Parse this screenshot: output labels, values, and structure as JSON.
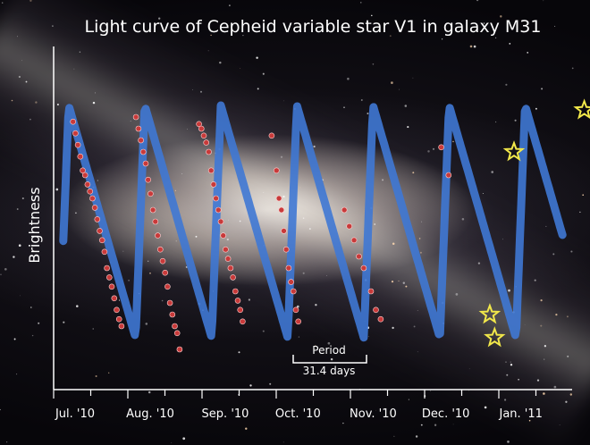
{
  "chart_data": {
    "type": "line",
    "title": "Light curve of Cepheid variable star V1 in galaxy M31",
    "ylabel": "Brightness",
    "xlabel": "",
    "x_tick_labels": [
      "Jul. '10",
      "Aug. '10",
      "Sep. '10",
      "Oct. '10",
      "Nov. '10",
      "Dec. '10",
      "Jan. '11"
    ],
    "x_range_days": [
      0,
      214
    ],
    "period_days": 31.4,
    "annotation": {
      "label": "Period",
      "value": "31.4 days"
    },
    "series": [
      {
        "kind": "model-curve",
        "color": "#3f78d4",
        "min": 0,
        "max": 1
      },
      {
        "kind": "observations",
        "color": "#c83a3a",
        "points": [
          [
            8,
            0.93
          ],
          [
            9,
            0.88
          ],
          [
            10,
            0.83
          ],
          [
            11,
            0.78
          ],
          [
            12,
            0.72
          ],
          [
            13,
            0.7
          ],
          [
            14,
            0.66
          ],
          [
            15,
            0.63
          ],
          [
            16,
            0.6
          ],
          [
            17,
            0.56
          ],
          [
            18,
            0.51
          ],
          [
            19,
            0.46
          ],
          [
            20,
            0.42
          ],
          [
            21,
            0.37
          ],
          [
            22,
            0.3
          ],
          [
            23,
            0.26
          ],
          [
            24,
            0.22
          ],
          [
            25,
            0.17
          ],
          [
            26,
            0.12
          ],
          [
            27,
            0.08
          ],
          [
            28,
            0.05
          ],
          [
            34,
            0.95
          ],
          [
            35,
            0.9
          ],
          [
            36,
            0.85
          ],
          [
            37,
            0.8
          ],
          [
            38,
            0.75
          ],
          [
            39,
            0.68
          ],
          [
            40,
            0.62
          ],
          [
            41,
            0.55
          ],
          [
            42,
            0.5
          ],
          [
            43,
            0.44
          ],
          [
            44,
            0.38
          ],
          [
            45,
            0.33
          ],
          [
            46,
            0.28
          ],
          [
            47,
            0.22
          ],
          [
            48,
            0.15
          ],
          [
            49,
            0.1
          ],
          [
            50,
            0.05
          ],
          [
            51,
            0.02
          ],
          [
            52,
            -0.05
          ],
          [
            60,
            0.92
          ],
          [
            61,
            0.9
          ],
          [
            62,
            0.87
          ],
          [
            63,
            0.84
          ],
          [
            64,
            0.8
          ],
          [
            65,
            0.72
          ],
          [
            66,
            0.66
          ],
          [
            67,
            0.6
          ],
          [
            68,
            0.55
          ],
          [
            69,
            0.5
          ],
          [
            70,
            0.44
          ],
          [
            71,
            0.38
          ],
          [
            72,
            0.34
          ],
          [
            73,
            0.3
          ],
          [
            74,
            0.26
          ],
          [
            75,
            0.2
          ],
          [
            76,
            0.16
          ],
          [
            77,
            0.12
          ],
          [
            78,
            0.07
          ],
          [
            90,
            0.87
          ],
          [
            92,
            0.72
          ],
          [
            93,
            0.6
          ],
          [
            94,
            0.55
          ],
          [
            95,
            0.46
          ],
          [
            96,
            0.38
          ],
          [
            97,
            0.3
          ],
          [
            98,
            0.24
          ],
          [
            99,
            0.2
          ],
          [
            100,
            0.12
          ],
          [
            101,
            0.07
          ],
          [
            120,
            0.55
          ],
          [
            122,
            0.48
          ],
          [
            124,
            0.42
          ],
          [
            126,
            0.35
          ],
          [
            128,
            0.3
          ],
          [
            131,
            0.2
          ],
          [
            133,
            0.12
          ],
          [
            135,
            0.08
          ],
          [
            160,
            0.82
          ],
          [
            163,
            0.7
          ]
        ]
      },
      {
        "kind": "highlighted-observations",
        "color": "#f2e84a",
        "points": [
          [
            180,
            0.1
          ],
          [
            182,
            0.0
          ],
          [
            190,
            0.8
          ],
          [
            219,
            0.98
          ]
        ]
      }
    ]
  }
}
